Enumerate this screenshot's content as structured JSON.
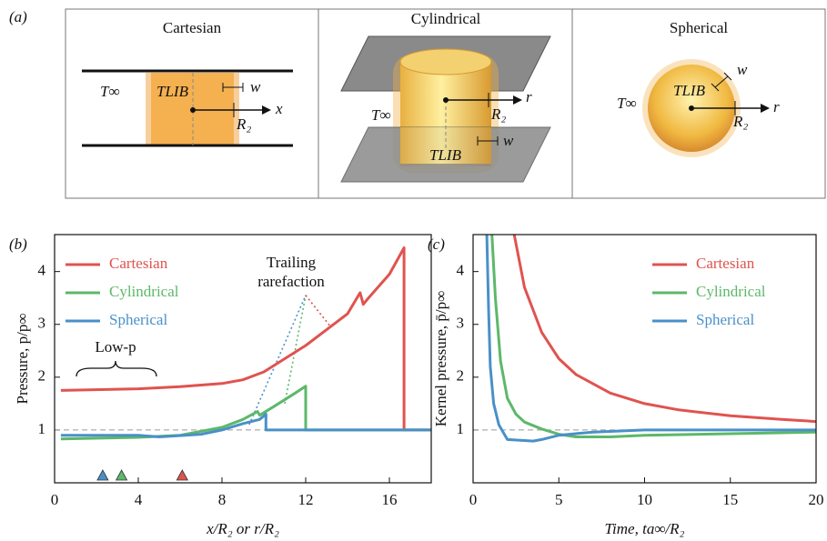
{
  "diagram": {
    "panel_label": "(a)",
    "cartesian": {
      "title": "Cartesian",
      "t_inf": "T∞",
      "t_lib": "TLIB",
      "w": "w",
      "axis": "x",
      "radius": "R₂"
    },
    "cylindrical": {
      "title": "Cylindrical",
      "t_inf": "T∞",
      "t_lib": "TLIB",
      "w": "w",
      "axis": "r",
      "radius": "R₂"
    },
    "spherical": {
      "title": "Spherical",
      "t_inf": "T∞",
      "t_lib": "TLIB",
      "w": "w",
      "axis": "r",
      "radius": "R₂"
    }
  },
  "chart_data": [
    {
      "type": "line",
      "panel_label": "(b)",
      "x_label": "x/R₂ or r/R₂",
      "y_label": "Pressure, p/p∞",
      "xlim": [
        0,
        18
      ],
      "ylim": [
        0,
        4.7
      ],
      "xticks": [
        0,
        4,
        8,
        12,
        16
      ],
      "yticks": [
        1,
        2,
        3,
        4
      ],
      "reference_line": 1,
      "legend": "upper left",
      "annotations": [
        "Trailing",
        "rarefaction",
        "Low-p"
      ],
      "series": [
        {
          "name": "Cartesian",
          "color": "#e0534f",
          "x": [
            0.3,
            4,
            6,
            8,
            9,
            10,
            11,
            12,
            13,
            14,
            14.6,
            14.75,
            15,
            16,
            16.7,
            16.7,
            18
          ],
          "values": [
            1.75,
            1.78,
            1.82,
            1.88,
            1.95,
            2.1,
            2.35,
            2.6,
            2.9,
            3.2,
            3.6,
            3.38,
            3.5,
            3.95,
            4.45,
            1,
            1
          ]
        },
        {
          "name": "Cylindrical",
          "color": "#5cb86a",
          "x": [
            0.3,
            4,
            6,
            8,
            9,
            9.7,
            9.8,
            10.5,
            11.5,
            12,
            12,
            18
          ],
          "values": [
            0.83,
            0.86,
            0.9,
            1.05,
            1.2,
            1.35,
            1.28,
            1.45,
            1.7,
            1.83,
            1,
            1
          ]
        },
        {
          "name": "Spherical",
          "color": "#4a90c8",
          "x": [
            0.3,
            4,
            5,
            7,
            8,
            9,
            9.8,
            10.1,
            10.1,
            18
          ],
          "values": [
            0.9,
            0.9,
            0.87,
            0.92,
            1.0,
            1.12,
            1.2,
            1.3,
            1.0,
            1.0
          ]
        }
      ],
      "guides": [
        {
          "color": "#4a90c8",
          "x": [
            9.3,
            12
          ],
          "values": [
            1.1,
            3.55
          ]
        },
        {
          "color": "#5cb86a",
          "x": [
            11,
            12
          ],
          "values": [
            1.5,
            3.55
          ]
        },
        {
          "color": "#e0534f",
          "x": [
            12,
            13.2
          ],
          "values": [
            3.55,
            2.95
          ]
        }
      ],
      "markers": [
        {
          "x": 2.3,
          "color": "#4a90c8"
        },
        {
          "x": 3.2,
          "color": "#5cb86a"
        },
        {
          "x": 6.1,
          "color": "#e0534f"
        }
      ]
    },
    {
      "type": "line",
      "panel_label": "(c)",
      "x_label": "Time, ta∞/R₂",
      "y_label": "Kernel pressure, p̄/p∞",
      "xlim": [
        0,
        20
      ],
      "ylim": [
        0,
        4.7
      ],
      "xticks": [
        0,
        5,
        10,
        15,
        20
      ],
      "yticks": [
        1,
        2,
        3,
        4
      ],
      "reference_line": 1,
      "legend": "upper right",
      "series": [
        {
          "name": "Cartesian",
          "color": "#e0534f",
          "x": [
            2.4,
            3,
            4,
            5,
            6,
            8,
            10,
            12,
            15,
            18,
            20
          ],
          "values": [
            4.7,
            3.7,
            2.85,
            2.35,
            2.05,
            1.7,
            1.5,
            1.38,
            1.27,
            1.2,
            1.16
          ]
        },
        {
          "name": "Cylindrical",
          "color": "#5cb86a",
          "x": [
            1.1,
            1.3,
            1.6,
            2,
            2.5,
            3,
            4,
            5,
            6,
            8,
            10,
            15,
            20
          ],
          "values": [
            4.7,
            3.5,
            2.3,
            1.6,
            1.3,
            1.15,
            1.02,
            0.92,
            0.87,
            0.87,
            0.9,
            0.93,
            0.96
          ]
        },
        {
          "name": "Spherical",
          "color": "#4a90c8",
          "x": [
            0.8,
            0.9,
            1.0,
            1.2,
            1.5,
            2,
            3,
            3.5,
            4,
            5,
            7,
            10,
            15,
            20
          ],
          "values": [
            4.7,
            3.3,
            2.2,
            1.5,
            1.1,
            0.82,
            0.8,
            0.79,
            0.82,
            0.9,
            0.96,
            1.0,
            1.0,
            1.0
          ]
        }
      ]
    }
  ]
}
